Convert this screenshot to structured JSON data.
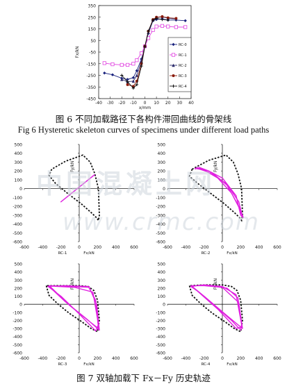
{
  "fig6": {
    "caption_zh": "图 6  不同加载路径下各构件滞回曲线的骨架线",
    "caption_en": "Fig 6 Hysteretic skeleton curves of specimens under different load paths"
  },
  "fig7": {
    "caption_zh": "图 7    双轴加载下 Fx－Fy  历史轨迹"
  },
  "watermark": {
    "line1": "中国混凝土网",
    "line2": "www.crmc.com"
  },
  "chart_data": [
    {
      "type": "line",
      "xlabel": "x/mm",
      "ylabel": "Fx/kN",
      "xlim": [
        -40,
        40
      ],
      "ylim": [
        -450,
        350
      ],
      "xticks": [
        -40,
        -30,
        -20,
        -10,
        0,
        10,
        20,
        30,
        40
      ],
      "yticks": [
        350,
        250,
        150,
        50,
        -50,
        -150,
        -250,
        -350,
        -450
      ],
      "legend_position": "right",
      "series": [
        {
          "name": "RC-0",
          "marker": "diamond",
          "color": "#1a237e",
          "x": [
            -35,
            -28,
            -20,
            -15,
            -10,
            -7,
            -3,
            0,
            3,
            7,
            10,
            15,
            20,
            27,
            35
          ],
          "y": [
            -230,
            -245,
            -275,
            -285,
            -270,
            -210,
            -110,
            0,
            110,
            220,
            230,
            235,
            225,
            225,
            220
          ]
        },
        {
          "name": "RC-1",
          "marker": "square",
          "color": "#e040e0",
          "x": [
            -35,
            -28,
            -20,
            -15,
            -10,
            -7,
            -3,
            0,
            3,
            7,
            10,
            15,
            20,
            27,
            35
          ],
          "y": [
            -145,
            -155,
            -160,
            -160,
            -150,
            -120,
            -60,
            0,
            70,
            140,
            170,
            175,
            170,
            165,
            165
          ]
        },
        {
          "name": "RC-2",
          "marker": "triangle",
          "color": "#2a2a6a",
          "x": [
            -20,
            -15,
            -10,
            -7,
            -3,
            0,
            3,
            7,
            10,
            15,
            20,
            27
          ],
          "y": [
            -285,
            -305,
            -300,
            -250,
            -130,
            0,
            120,
            225,
            245,
            255,
            240,
            235
          ]
        },
        {
          "name": "RC-3",
          "marker": "circle",
          "color": "#8a1a0a",
          "x": [
            -15,
            -10,
            -7,
            -3,
            0,
            3,
            7,
            10,
            15,
            20,
            27
          ],
          "y": [
            -330,
            -345,
            -300,
            -150,
            0,
            130,
            230,
            250,
            255,
            245,
            240
          ]
        },
        {
          "name": "RC-4",
          "marker": "plus",
          "color": "#111111",
          "x": [
            -20,
            -15,
            -10,
            -7,
            -3,
            0,
            3,
            7,
            10,
            15,
            20
          ],
          "y": [
            -250,
            -305,
            -360,
            -330,
            -170,
            0,
            130,
            225,
            240,
            230,
            225
          ]
        }
      ]
    },
    {
      "type": "line",
      "id": "RC-1",
      "label": "RC-1",
      "xunit": "Fx/kN",
      "ylabel": "Fy/kN",
      "xlim": [
        -600,
        600
      ],
      "ylim": [
        -600,
        500
      ],
      "xticks": [
        -600,
        -400,
        -200,
        0,
        200,
        400,
        600
      ],
      "yticks": [
        500,
        400,
        300,
        200,
        100,
        0,
        -100,
        -200,
        -300,
        -400,
        -500,
        -600
      ],
      "envelope": [
        [
          -300,
          220
        ],
        [
          -330,
          150
        ],
        [
          -260,
          60
        ],
        [
          -120,
          -60
        ],
        [
          20,
          -170
        ],
        [
          130,
          -270
        ],
        [
          190,
          -330
        ],
        [
          210,
          -360
        ],
        [
          220,
          -300
        ],
        [
          210,
          0
        ],
        [
          170,
          170
        ],
        [
          120,
          300
        ],
        [
          40,
          380
        ],
        [
          -150,
          310
        ],
        [
          -300,
          220
        ]
      ],
      "trace": [
        [
          -200,
          -150
        ],
        [
          160,
          150
        ],
        [
          -200,
          -150
        ],
        [
          170,
          160
        ]
      ]
    },
    {
      "type": "line",
      "id": "RC-2",
      "label": "RC-2",
      "xunit": "Fx/kN",
      "ylabel": "Fy/kN",
      "xlim": [
        -600,
        600
      ],
      "ylim": [
        -600,
        500
      ],
      "xticks": [
        -600,
        -400,
        -200,
        0,
        200,
        400,
        600
      ],
      "yticks": [
        500,
        400,
        300,
        200,
        100,
        0,
        -100,
        -200,
        -300,
        -400,
        -500,
        -600
      ],
      "envelope": [
        [
          -330,
          220
        ],
        [
          -360,
          140
        ],
        [
          -270,
          60
        ],
        [
          -120,
          -60
        ],
        [
          20,
          -170
        ],
        [
          130,
          -270
        ],
        [
          190,
          -330
        ],
        [
          210,
          -360
        ],
        [
          220,
          -300
        ],
        [
          210,
          0
        ],
        [
          170,
          170
        ],
        [
          120,
          300
        ],
        [
          40,
          380
        ],
        [
          -150,
          320
        ],
        [
          -330,
          220
        ]
      ],
      "trace": [
        [
          -300,
          220
        ],
        [
          -250,
          240
        ],
        [
          -150,
          200
        ],
        [
          0,
          120
        ],
        [
          150,
          -80
        ],
        [
          200,
          -300
        ],
        [
          230,
          -330
        ],
        [
          200,
          -250
        ],
        [
          100,
          -50
        ],
        [
          -50,
          120
        ],
        [
          -200,
          210
        ],
        [
          -300,
          230
        ],
        [
          -250,
          220
        ],
        [
          -100,
          170
        ],
        [
          50,
          40
        ],
        [
          180,
          -200
        ],
        [
          220,
          -320
        ],
        [
          180,
          -150
        ],
        [
          50,
          50
        ],
        [
          -150,
          200
        ],
        [
          -280,
          240
        ]
      ]
    },
    {
      "type": "line",
      "id": "RC-3",
      "label": "RC-3",
      "xunit": "Fx/kN",
      "ylabel": "Fy/kN",
      "xlim": [
        -600,
        600
      ],
      "ylim": [
        -600,
        500
      ],
      "xticks": [
        -600,
        -400,
        -200,
        0,
        200,
        400,
        600
      ],
      "yticks": [
        500,
        400,
        300,
        200,
        100,
        0,
        -100,
        -200,
        -300,
        -400,
        -500,
        -600
      ],
      "envelope": [
        [
          -360,
          230
        ],
        [
          -330,
          110
        ],
        [
          -230,
          0
        ],
        [
          -110,
          -110
        ],
        [
          20,
          -210
        ],
        [
          130,
          -300
        ],
        [
          200,
          -340
        ],
        [
          220,
          -200
        ],
        [
          200,
          50
        ],
        [
          160,
          170
        ],
        [
          100,
          220
        ],
        [
          0,
          230
        ],
        [
          -200,
          230
        ],
        [
          -360,
          230
        ]
      ],
      "trace": [
        [
          -350,
          220
        ],
        [
          -150,
          230
        ],
        [
          100,
          220
        ],
        [
          180,
          50
        ],
        [
          210,
          -300
        ],
        [
          120,
          -220
        ],
        [
          -100,
          -20
        ],
        [
          -300,
          200
        ],
        [
          -330,
          230
        ],
        [
          -100,
          220
        ],
        [
          110,
          210
        ],
        [
          190,
          0
        ],
        [
          220,
          -320
        ],
        [
          80,
          -180
        ],
        [
          -150,
          30
        ],
        [
          -320,
          210
        ],
        [
          -300,
          225
        ],
        [
          -50,
          210
        ],
        [
          150,
          150
        ],
        [
          210,
          -250
        ],
        [
          180,
          -330
        ],
        [
          0,
          -120
        ],
        [
          -200,
          100
        ],
        [
          -340,
          220
        ]
      ]
    },
    {
      "type": "line",
      "id": "RC-4",
      "label": "RC-4",
      "xunit": "Fx/kN",
      "ylabel": "Fy/kN",
      "xlim": [
        -600,
        600
      ],
      "ylim": [
        -600,
        500
      ],
      "xticks": [
        -600,
        -400,
        -200,
        0,
        200,
        400,
        600
      ],
      "yticks": [
        500,
        400,
        300,
        200,
        100,
        0,
        -100,
        -200,
        -300,
        -400,
        -500,
        -600
      ],
      "envelope": [
        [
          -360,
          230
        ],
        [
          -330,
          110
        ],
        [
          -230,
          0
        ],
        [
          -110,
          -110
        ],
        [
          20,
          -210
        ],
        [
          130,
          -300
        ],
        [
          200,
          -340
        ],
        [
          220,
          -200
        ],
        [
          200,
          50
        ],
        [
          160,
          170
        ],
        [
          100,
          220
        ],
        [
          0,
          240
        ],
        [
          -200,
          240
        ],
        [
          -360,
          230
        ]
      ],
      "trace": [
        [
          -350,
          220
        ],
        [
          -200,
          240
        ],
        [
          0,
          220
        ],
        [
          150,
          120
        ],
        [
          210,
          -250
        ],
        [
          200,
          -320
        ],
        [
          100,
          -200
        ],
        [
          -100,
          0
        ],
        [
          -300,
          190
        ],
        [
          -340,
          230
        ],
        [
          -150,
          230
        ],
        [
          50,
          200
        ],
        [
          170,
          80
        ],
        [
          220,
          -300
        ],
        [
          60,
          -150
        ],
        [
          -200,
          100
        ],
        [
          -330,
          220
        ],
        [
          -250,
          235
        ],
        [
          0,
          210
        ],
        [
          180,
          20
        ],
        [
          215,
          -280
        ],
        [
          150,
          -300
        ],
        [
          -50,
          -60
        ],
        [
          -280,
          170
        ],
        [
          -350,
          225
        ]
      ]
    }
  ]
}
